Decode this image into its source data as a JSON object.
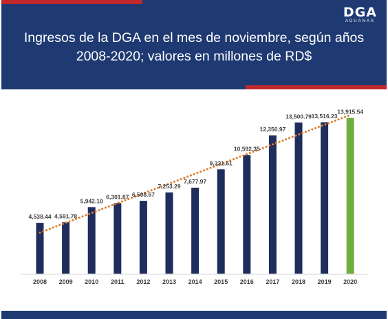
{
  "header": {
    "title_line1": "Ingresos de la DGA en el mes de noviembre, según años",
    "title_line2": "2008-2020; valores en millones de RD$",
    "logo_main": "DGA",
    "logo_sub": "ADUANAS"
  },
  "colors": {
    "header_bg": "#1f3a72",
    "accent_red": "#c0282d",
    "bar": "#1f2d5c",
    "bar_highlight": "#6fad3c",
    "trendline": "#e07b2a"
  },
  "chart_data": {
    "type": "bar",
    "title": "Ingresos de la DGA en el mes de noviembre, según años 2008-2020; valores en millones de RD$",
    "xlabel": "",
    "ylabel": "",
    "categories": [
      "2008",
      "2009",
      "2010",
      "2011",
      "2012",
      "2013",
      "2014",
      "2015",
      "2016",
      "2017",
      "2018",
      "2019",
      "2020"
    ],
    "values": [
      4538.44,
      4591.78,
      5942.1,
      6301.87,
      6508.67,
      7253.29,
      7677.97,
      9321.61,
      10592.35,
      12350.97,
      13500.79,
      13516.23,
      13915.54
    ],
    "labels": [
      "4,538.44",
      "4,591.78",
      "5,942.10",
      "6,301.87",
      "6,508.67",
      "7,253.29",
      "7,677.97",
      "9,321.61",
      "10,592.35",
      "12,350.97",
      "13,500.79",
      "13,516.23",
      "13,915.54"
    ],
    "highlight_category": "2020",
    "trendline": "linear, dotted",
    "grid": false,
    "legend": "none",
    "ylim": [
      0,
      14500
    ]
  }
}
